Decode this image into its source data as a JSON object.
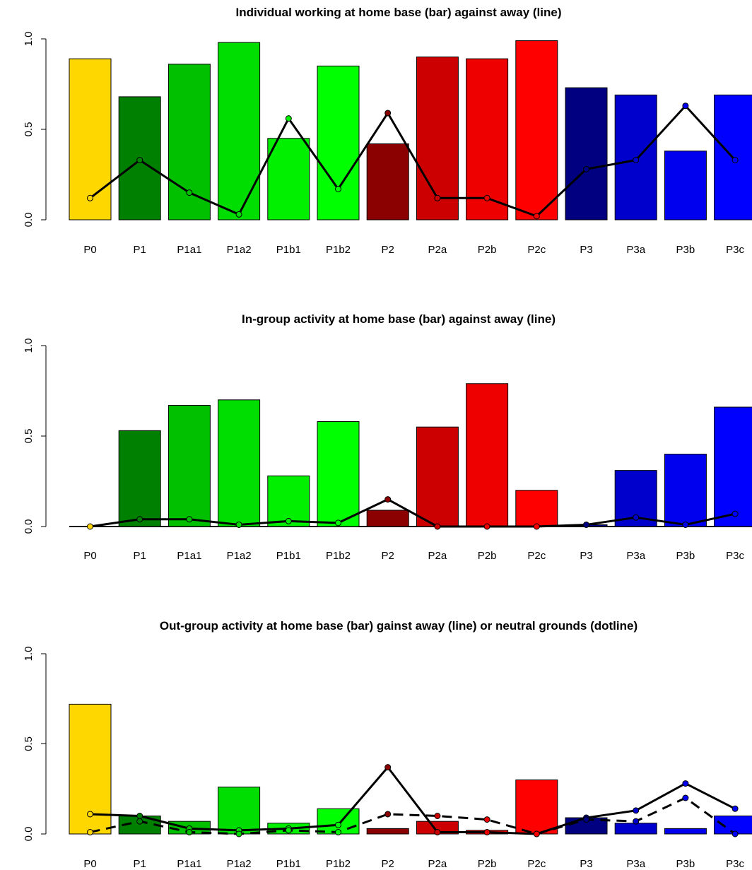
{
  "chart_data": [
    {
      "type": "bar",
      "title": "Individual working at home base (bar) against away (line)",
      "categories": [
        "P0",
        "P1",
        "P1a1",
        "P1a2",
        "P1b1",
        "P1b2",
        "P2",
        "P2a",
        "P2b",
        "P2c",
        "P3",
        "P3a",
        "P3b",
        "P3c"
      ],
      "colors": [
        "#FFD700",
        "#008000",
        "#00C000",
        "#00DD00",
        "#00F000",
        "#00FF00",
        "#8B0000",
        "#CC0000",
        "#EE0000",
        "#FF0000",
        "#000080",
        "#0000CD",
        "#0000EE",
        "#0000FF"
      ],
      "ylim": [
        0,
        1
      ],
      "yticks": [
        "0.0",
        "0.5",
        "1.0"
      ],
      "series": [
        {
          "values": [
            0.89,
            0.68,
            0.86,
            0.98,
            0.45,
            0.85,
            0.42,
            0.9,
            0.89,
            0.99,
            0.73,
            0.69,
            0.38,
            0.69
          ]
        },
        {
          "values": [
            0.12,
            0.33,
            0.15,
            0.03,
            0.56,
            0.17,
            0.59,
            0.12,
            0.12,
            0.02,
            0.28,
            0.33,
            0.63,
            0.33
          ]
        }
      ]
    },
    {
      "type": "bar",
      "title": "In-group activity at home base (bar) against away (line)",
      "categories": [
        "P0",
        "P1",
        "P1a1",
        "P1a2",
        "P1b1",
        "P1b2",
        "P2",
        "P2a",
        "P2b",
        "P2c",
        "P3",
        "P3a",
        "P3b",
        "P3c"
      ],
      "colors": [
        "#FFD700",
        "#008000",
        "#00C000",
        "#00DD00",
        "#00F000",
        "#00FF00",
        "#8B0000",
        "#CC0000",
        "#EE0000",
        "#FF0000",
        "#000080",
        "#0000CD",
        "#0000EE",
        "#0000FF"
      ],
      "ylim": [
        0,
        1
      ],
      "yticks": [
        "0.0",
        "0.5",
        "1.0"
      ],
      "series": [
        {
          "values": [
            0.0,
            0.53,
            0.67,
            0.7,
            0.28,
            0.58,
            0.09,
            0.55,
            0.79,
            0.2,
            0.01,
            0.31,
            0.4,
            0.66
          ]
        },
        {
          "values": [
            0.0,
            0.04,
            0.04,
            0.01,
            0.03,
            0.02,
            0.15,
            0.0,
            0.0,
            0.0,
            0.01,
            0.05,
            0.01,
            0.07
          ]
        }
      ]
    },
    {
      "type": "bar",
      "title": "Out-group activity at home base (bar) gainst away (line) or neutral grounds (dotline)",
      "categories": [
        "P0",
        "P1",
        "P1a1",
        "P1a2",
        "P1b1",
        "P1b2",
        "P2",
        "P2a",
        "P2b",
        "P2c",
        "P3",
        "P3a",
        "P3b",
        "P3c"
      ],
      "colors": [
        "#FFD700",
        "#008000",
        "#00C000",
        "#00DD00",
        "#00F000",
        "#00FF00",
        "#8B0000",
        "#CC0000",
        "#EE0000",
        "#FF0000",
        "#000080",
        "#0000CD",
        "#0000EE",
        "#0000FF"
      ],
      "ylim": [
        0,
        1
      ],
      "yticks": [
        "0.0",
        "0.5",
        "1.0"
      ],
      "series": [
        {
          "values": [
            0.72,
            0.1,
            0.07,
            0.26,
            0.06,
            0.14,
            0.03,
            0.07,
            0.02,
            0.3,
            0.09,
            0.06,
            0.03,
            0.1
          ]
        },
        {
          "values": [
            0.11,
            0.1,
            0.03,
            0.02,
            0.03,
            0.05,
            0.37,
            0.01,
            0.01,
            0.0,
            0.09,
            0.13,
            0.28,
            0.14
          ]
        },
        {
          "values": [
            0.01,
            0.07,
            0.01,
            0.0,
            0.02,
            0.01,
            0.11,
            0.1,
            0.08,
            0.0,
            0.08,
            0.07,
            0.2,
            0.0
          ]
        }
      ]
    }
  ]
}
